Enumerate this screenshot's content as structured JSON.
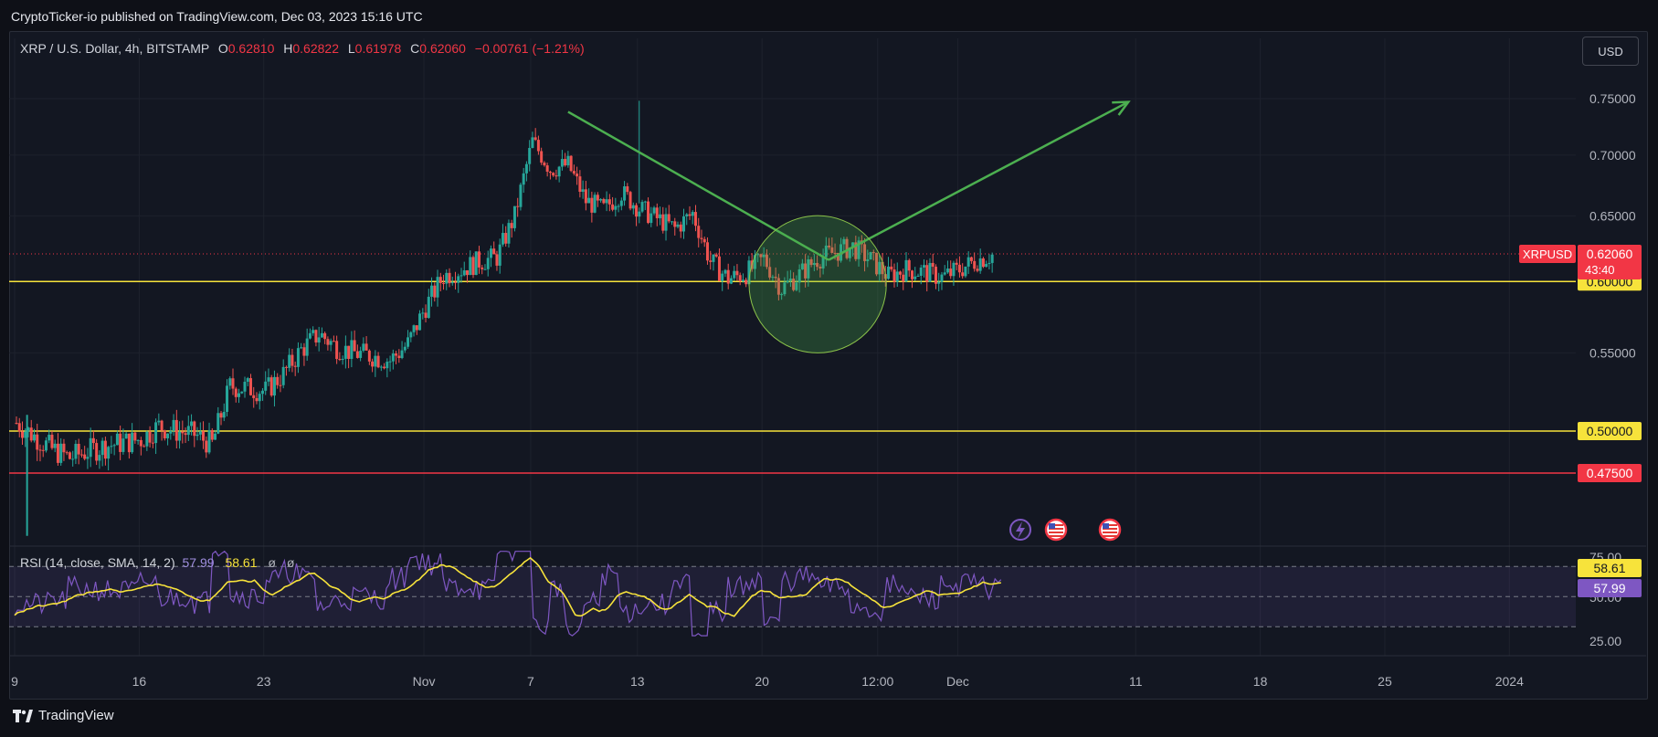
{
  "caption": "CryptoTicker-io published on TradingView.com, Dec 03, 2023 15:16 UTC",
  "symbol": {
    "name": "XRP / U.S. Dollar, 4h, BITSTAMP",
    "o_label": "O",
    "o": "0.62810",
    "h_label": "H",
    "h": "0.62822",
    "l_label": "L",
    "l": "0.61978",
    "c_label": "C",
    "c": "0.62060",
    "change": "−0.00761 (−1.21%)"
  },
  "currency_button": "USD",
  "rsi": {
    "label": "RSI (14, close, SMA, 14, 2)",
    "rsi_value": "57.99",
    "sma_value": "58.61",
    "extra1": "ø",
    "extra2": "ø"
  },
  "footer": {
    "brand": "TradingView"
  },
  "colors": {
    "up": "#26a69a",
    "down": "#ef5350",
    "support": "#f7e33b",
    "resistance_red": "#f23645",
    "trend_arrow": "#4caf50",
    "rsi_line": "#7e57c2",
    "rsi_sma": "#f7e33b",
    "background": "#131722"
  },
  "chart_data": {
    "type": "candlestick",
    "title": "XRP / U.S. Dollar, 4h, BITSTAMP",
    "price_axis": {
      "ticks": [
        "0.75000",
        "0.70000",
        "0.65000",
        "0.55000"
      ],
      "range": [
        0.435,
        0.772
      ]
    },
    "time_axis": {
      "ticks": [
        "9",
        "16",
        "23",
        "Nov",
        "7",
        "13",
        "20",
        "12:00",
        "Dec",
        "11",
        "18",
        "25",
        "2024"
      ]
    },
    "last_price": {
      "symbol": "XRPUSD",
      "value": "0.62060",
      "countdown": "43:40"
    },
    "horizontal_levels": [
      {
        "value": 0.6,
        "label": "0.60000",
        "color": "#f7e33b"
      },
      {
        "value": 0.5,
        "label": "0.50000",
        "color": "#f7e33b"
      },
      {
        "value": 0.475,
        "label": "0.47500",
        "color": "#f23645"
      }
    ],
    "annotations": [
      {
        "type": "trend_line",
        "from": [
          "Nov 9",
          0.738
        ],
        "to": [
          "Nov 22",
          0.616
        ]
      },
      {
        "type": "trend_arrow",
        "from": [
          "Nov 22",
          0.616
        ],
        "to": [
          "Dec 11",
          0.747
        ]
      },
      {
        "type": "highlight_circle",
        "center": [
          "Nov 22",
          0.598
        ],
        "radius_price": 0.048
      }
    ],
    "series_path": [
      [
        "Oct 9",
        0.505
      ],
      [
        "Oct 10",
        0.497
      ],
      [
        "Oct 11",
        0.489
      ],
      [
        "Oct 12",
        0.484
      ],
      [
        "Oct 13",
        0.488
      ],
      [
        "Oct 14",
        0.491
      ],
      [
        "Oct 15",
        0.493
      ],
      [
        "Oct 16",
        0.495
      ],
      [
        "Oct 17",
        0.503
      ],
      [
        "Oct 18",
        0.5
      ],
      [
        "Oct 19",
        0.498
      ],
      [
        "Oct 20",
        0.492
      ],
      [
        "Oct 21",
        0.528
      ],
      [
        "Oct 22",
        0.527
      ],
      [
        "Oct 23",
        0.525
      ],
      [
        "Oct 24",
        0.536
      ],
      [
        "Oct 25",
        0.552
      ],
      [
        "Oct 26",
        0.563
      ],
      [
        "Oct 27",
        0.554
      ],
      [
        "Oct 28",
        0.55
      ],
      [
        "Oct 29",
        0.548
      ],
      [
        "Oct 30",
        0.545
      ],
      [
        "Oct 31",
        0.556
      ],
      [
        "Nov 1",
        0.582
      ],
      [
        "Nov 2",
        0.604
      ],
      [
        "Nov 3",
        0.609
      ],
      [
        "Nov 4",
        0.615
      ],
      [
        "Nov 5",
        0.618
      ],
      [
        "Nov 6",
        0.65
      ],
      [
        "Nov 7",
        0.712
      ],
      [
        "Nov 8",
        0.688
      ],
      [
        "Nov 9",
        0.692
      ],
      [
        "Nov 10",
        0.662
      ],
      [
        "Nov 11",
        0.655
      ],
      [
        "Nov 12",
        0.669
      ],
      [
        "Nov 13",
        0.656
      ],
      [
        "Nov 14",
        0.648
      ],
      [
        "Nov 15",
        0.64
      ],
      [
        "Nov 16",
        0.652
      ],
      [
        "Nov 17",
        0.615
      ],
      [
        "Nov 18",
        0.602
      ],
      [
        "Nov 19",
        0.606
      ],
      [
        "Nov 20",
        0.617
      ],
      [
        "Nov 21",
        0.595
      ],
      [
        "Nov 22",
        0.605
      ],
      [
        "Nov 23",
        0.617
      ],
      [
        "Nov 24",
        0.622
      ],
      [
        "Nov 25",
        0.626
      ],
      [
        "Nov 26",
        0.616
      ],
      [
        "Nov 27",
        0.604
      ],
      [
        "Nov 28",
        0.609
      ],
      [
        "Nov 29",
        0.607
      ],
      [
        "Nov 30",
        0.603
      ],
      [
        "Dec 1",
        0.609
      ],
      [
        "Dec 2",
        0.616
      ],
      [
        "Dec 3",
        0.6206
      ]
    ],
    "rsi_panel": {
      "levels": [
        "75.00",
        "50.00",
        "25.00"
      ],
      "band": [
        30,
        70
      ],
      "rsi_last": 57.99,
      "sma_last": 58.61
    }
  }
}
